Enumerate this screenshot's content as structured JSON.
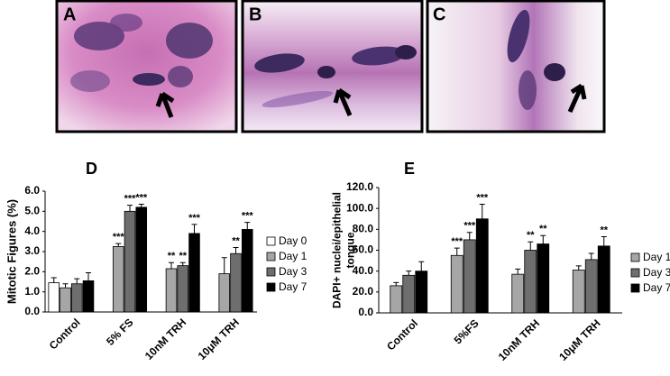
{
  "panels": [
    "A",
    "B",
    "C"
  ],
  "chart_data": [
    {
      "type": "bar",
      "panel_label": "D",
      "ylabel": [
        "Mitotic Figures (%)"
      ],
      "categories": [
        "Control",
        "5% FS",
        "10nM TRH",
        "10μM TRH"
      ],
      "ylim": [
        0,
        6
      ],
      "yticks": [
        {
          "value": 0,
          "label": "0.0"
        },
        {
          "value": 1,
          "label": "1.0"
        },
        {
          "value": 2,
          "label": "2.0"
        },
        {
          "value": 3,
          "label": "3.0"
        },
        {
          "value": 4,
          "label": "4.0"
        },
        {
          "value": 5,
          "label": "5.0"
        },
        {
          "value": 6,
          "label": "6.0"
        }
      ],
      "series": [
        {
          "name": "Day 0",
          "color": "#ffffff",
          "values": [
            1.45,
            null,
            null,
            null
          ],
          "errors": [
            0.25,
            null,
            null,
            null
          ],
          "significance": [
            null,
            null,
            null,
            null
          ]
        },
        {
          "name": "Day 1",
          "color": "#a6a6a6",
          "values": [
            1.2,
            3.25,
            2.15,
            1.9
          ],
          "errors": [
            0.2,
            0.15,
            0.3,
            0.8
          ],
          "significance": [
            null,
            "***",
            "**",
            null
          ]
        },
        {
          "name": "Day 3",
          "color": "#6e6e6e",
          "values": [
            1.4,
            5.0,
            2.3,
            2.9
          ],
          "errors": [
            0.25,
            0.3,
            0.15,
            0.3
          ],
          "significance": [
            null,
            "***",
            "**",
            "**"
          ]
        },
        {
          "name": "Day 7",
          "color": "#000000",
          "values": [
            1.55,
            5.2,
            3.9,
            4.1
          ],
          "errors": [
            0.4,
            0.15,
            0.45,
            0.35
          ],
          "significance": [
            null,
            "***",
            "***",
            "***"
          ]
        }
      ]
    },
    {
      "type": "bar",
      "panel_label": "E",
      "ylabel": [
        "DAPI+ nuclei/epithelial",
        "tongue"
      ],
      "categories": [
        "Control",
        "5%FS",
        "10nM TRH",
        "10μM TRH"
      ],
      "ylim": [
        0,
        120
      ],
      "yticks": [
        {
          "value": 0,
          "label": "0.0"
        },
        {
          "value": 20,
          "label": "20.0"
        },
        {
          "value": 40,
          "label": "40.0"
        },
        {
          "value": 60,
          "label": "60.0"
        },
        {
          "value": 80,
          "label": "80.0"
        },
        {
          "value": 100,
          "label": "100.0"
        },
        {
          "value": 120,
          "label": "120.0"
        }
      ],
      "series": [
        {
          "name": "Day 1",
          "color": "#a6a6a6",
          "values": [
            26,
            55,
            37,
            41
          ],
          "errors": [
            3,
            7,
            5,
            4
          ],
          "significance": [
            null,
            "***",
            null,
            null
          ]
        },
        {
          "name": "Day 3",
          "color": "#6e6e6e",
          "values": [
            36,
            70,
            60,
            51
          ],
          "errors": [
            4,
            7,
            8,
            6
          ],
          "significance": [
            null,
            "***",
            "**",
            null
          ]
        },
        {
          "name": "Day 7",
          "color": "#000000",
          "values": [
            40,
            90,
            66,
            64
          ],
          "errors": [
            9,
            14,
            8,
            9
          ],
          "significance": [
            null,
            "***",
            "**",
            "**"
          ]
        }
      ]
    }
  ]
}
